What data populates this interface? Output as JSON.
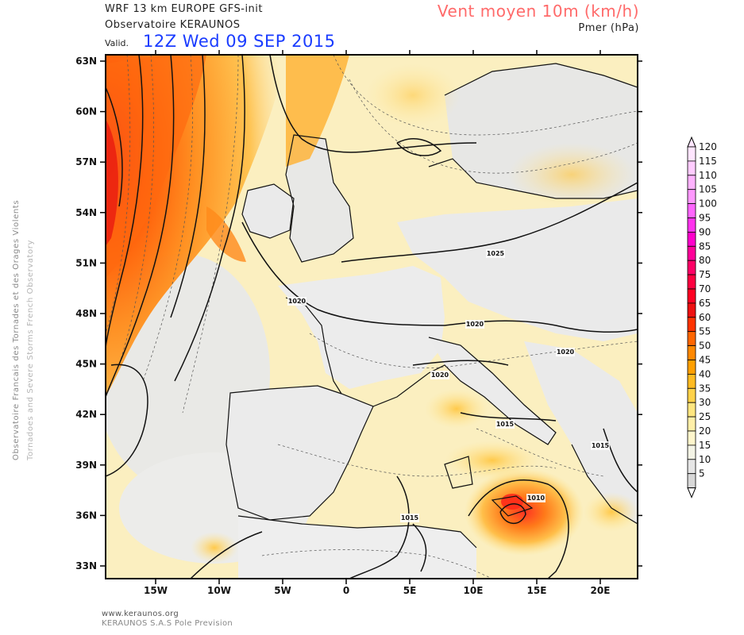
{
  "header": {
    "model": "WRF 13 km EUROPE   GFS-init",
    "observatory": "Observatoire KERAUNOS",
    "valid_label": "Valid.",
    "valid_date": "12Z Wed 09 SEP 2015",
    "field_title": "Vent moyen 10m (km/h)",
    "field_subtitle": "Pmer (hPa)"
  },
  "side_labels": {
    "line1": "Observatoire Francais des Tornades et des Orages Violents",
    "line2": "Tornadoes and Severe Storms French Observatory"
  },
  "footer": {
    "url": "www.keraunos.org",
    "company": "KERAUNOS S.A.S Pole Prevision"
  },
  "map": {
    "lat_labels": [
      "63N",
      "60N",
      "57N",
      "54N",
      "51N",
      "48N",
      "45N",
      "42N",
      "39N",
      "36N",
      "33N"
    ],
    "lon_labels": [
      "15W",
      "10W",
      "5W",
      "0",
      "5E",
      "10E",
      "15E",
      "20E"
    ],
    "isobar_labels": [
      "1025",
      "1020",
      "1020",
      "1020",
      "1020",
      "1015",
      "1015",
      "1015",
      "1010"
    ]
  },
  "colorbar": {
    "levels": [
      "120",
      "115",
      "110",
      "105",
      "100",
      "95",
      "90",
      "85",
      "80",
      "75",
      "70",
      "65",
      "60",
      "55",
      "50",
      "45",
      "40",
      "35",
      "30",
      "25",
      "20",
      "15",
      "10",
      "5"
    ],
    "colors": [
      "#ffe6ff",
      "#ffccff",
      "#ffb3ff",
      "#ff99ff",
      "#ff66ff",
      "#ff33ee",
      "#ff00cc",
      "#ff0099",
      "#ff0066",
      "#ff0040",
      "#ff0022",
      "#ee1111",
      "#ff3300",
      "#ff6600",
      "#ff8800",
      "#ff9f00",
      "#ffbb22",
      "#ffd24a",
      "#ffe680",
      "#ffefa8",
      "#fff6cc",
      "#f4f4e6",
      "#e6e6e6",
      "#d8d8d8"
    ]
  },
  "colors": {
    "ocean_base": "#fbf1c8",
    "land_base": "#efefef",
    "coast": "#111111",
    "isobar": "#111111",
    "strong_wind": "#ff7a00"
  }
}
